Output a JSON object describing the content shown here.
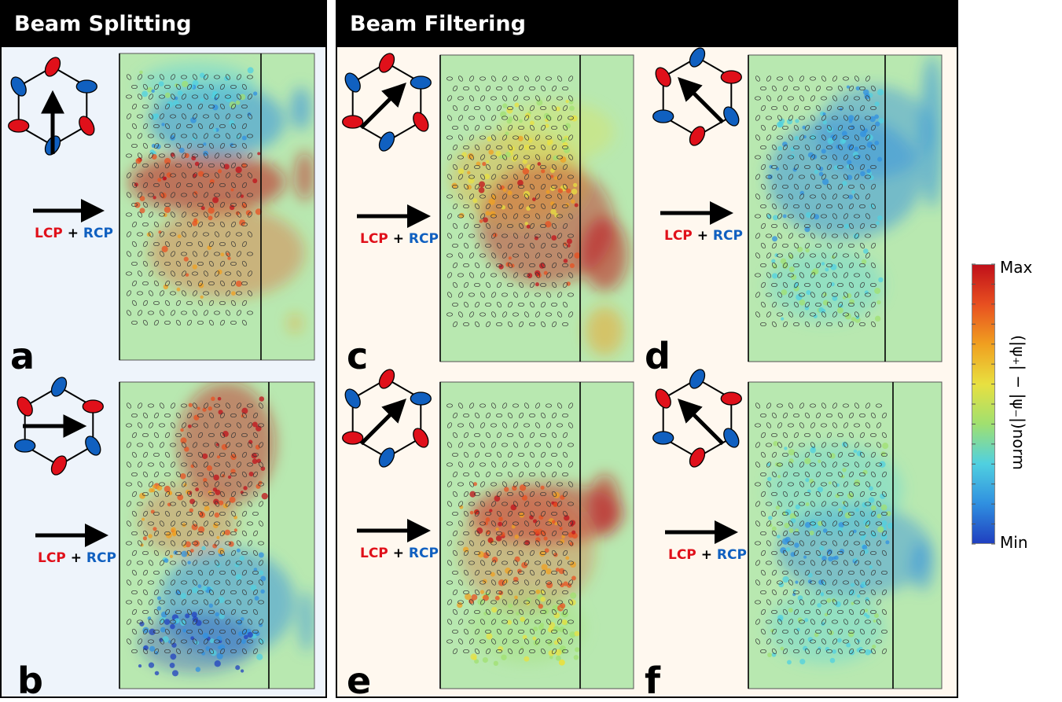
{
  "sections": {
    "splitting": {
      "title": "Beam Splitting"
    },
    "filtering": {
      "title": "Beam Filtering"
    }
  },
  "panels": [
    {
      "id": "a",
      "letter": "a",
      "lcp": "LCP",
      "plus": "+",
      "rcp": "RCP"
    },
    {
      "id": "b",
      "letter": "b",
      "lcp": "LCP",
      "plus": "+",
      "rcp": "RCP"
    },
    {
      "id": "c",
      "letter": "c",
      "lcp": "LCP",
      "plus": "+",
      "rcp": "RCP"
    },
    {
      "id": "d",
      "letter": "d",
      "lcp": "LCP",
      "plus": "+",
      "rcp": "RCP"
    },
    {
      "id": "e",
      "letter": "e",
      "lcp": "LCP",
      "plus": "+",
      "rcp": "RCP"
    },
    {
      "id": "f",
      "letter": "f",
      "lcp": "LCP",
      "plus": "+",
      "rcp": "RCP"
    }
  ],
  "colorbar": {
    "max_label": "Max",
    "min_label": "Min",
    "title": "(|ψ₊| − |ψ₋|)norm",
    "colors": [
      "#c0101a",
      "#e85020",
      "#f0a020",
      "#e8e040",
      "#a0e070",
      "#50d0e0",
      "#3090e0",
      "#2040c0"
    ]
  },
  "colors": {
    "lcp": "#e0101a",
    "rcp": "#1060c0",
    "field_background": "#b8e8b0",
    "splitting_bg": "#eef4fb",
    "filtering_bg": "#fff8ef"
  }
}
